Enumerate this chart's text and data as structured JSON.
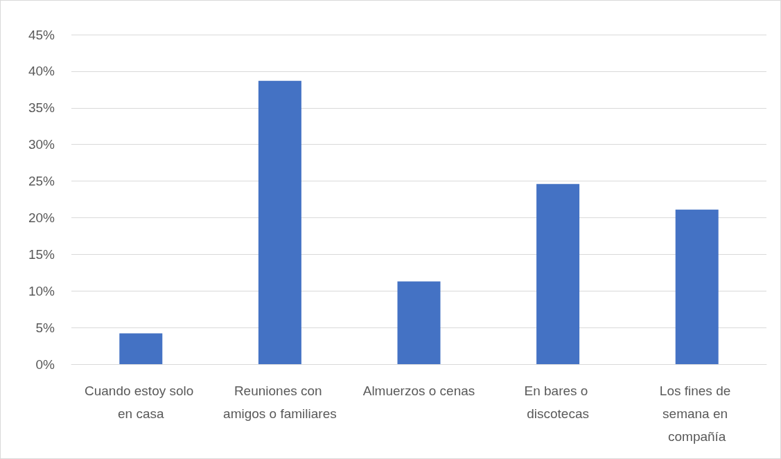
{
  "chart_data": {
    "type": "bar",
    "categories": [
      "Cuando estoy solo en casa",
      "Reuniones con amigos o familiares",
      "Almuerzos o cenas",
      "En bares o discotecas",
      "Los fines de semana en compañía"
    ],
    "values": [
      4.2,
      38.7,
      11.3,
      24.6,
      21.1
    ],
    "color": "#4472c4",
    "ylim": [
      0,
      45
    ],
    "yticks": [
      {
        "value": 0,
        "label": "0%"
      },
      {
        "value": 5,
        "label": "5%"
      },
      {
        "value": 10,
        "label": "10%"
      },
      {
        "value": 15,
        "label": "15%"
      },
      {
        "value": 20,
        "label": "20%"
      },
      {
        "value": 25,
        "label": "25%"
      },
      {
        "value": 30,
        "label": "30%"
      },
      {
        "value": 35,
        "label": "35%"
      },
      {
        "value": 40,
        "label": "40%"
      },
      {
        "value": 45,
        "label": "45%"
      }
    ],
    "grid": true
  }
}
